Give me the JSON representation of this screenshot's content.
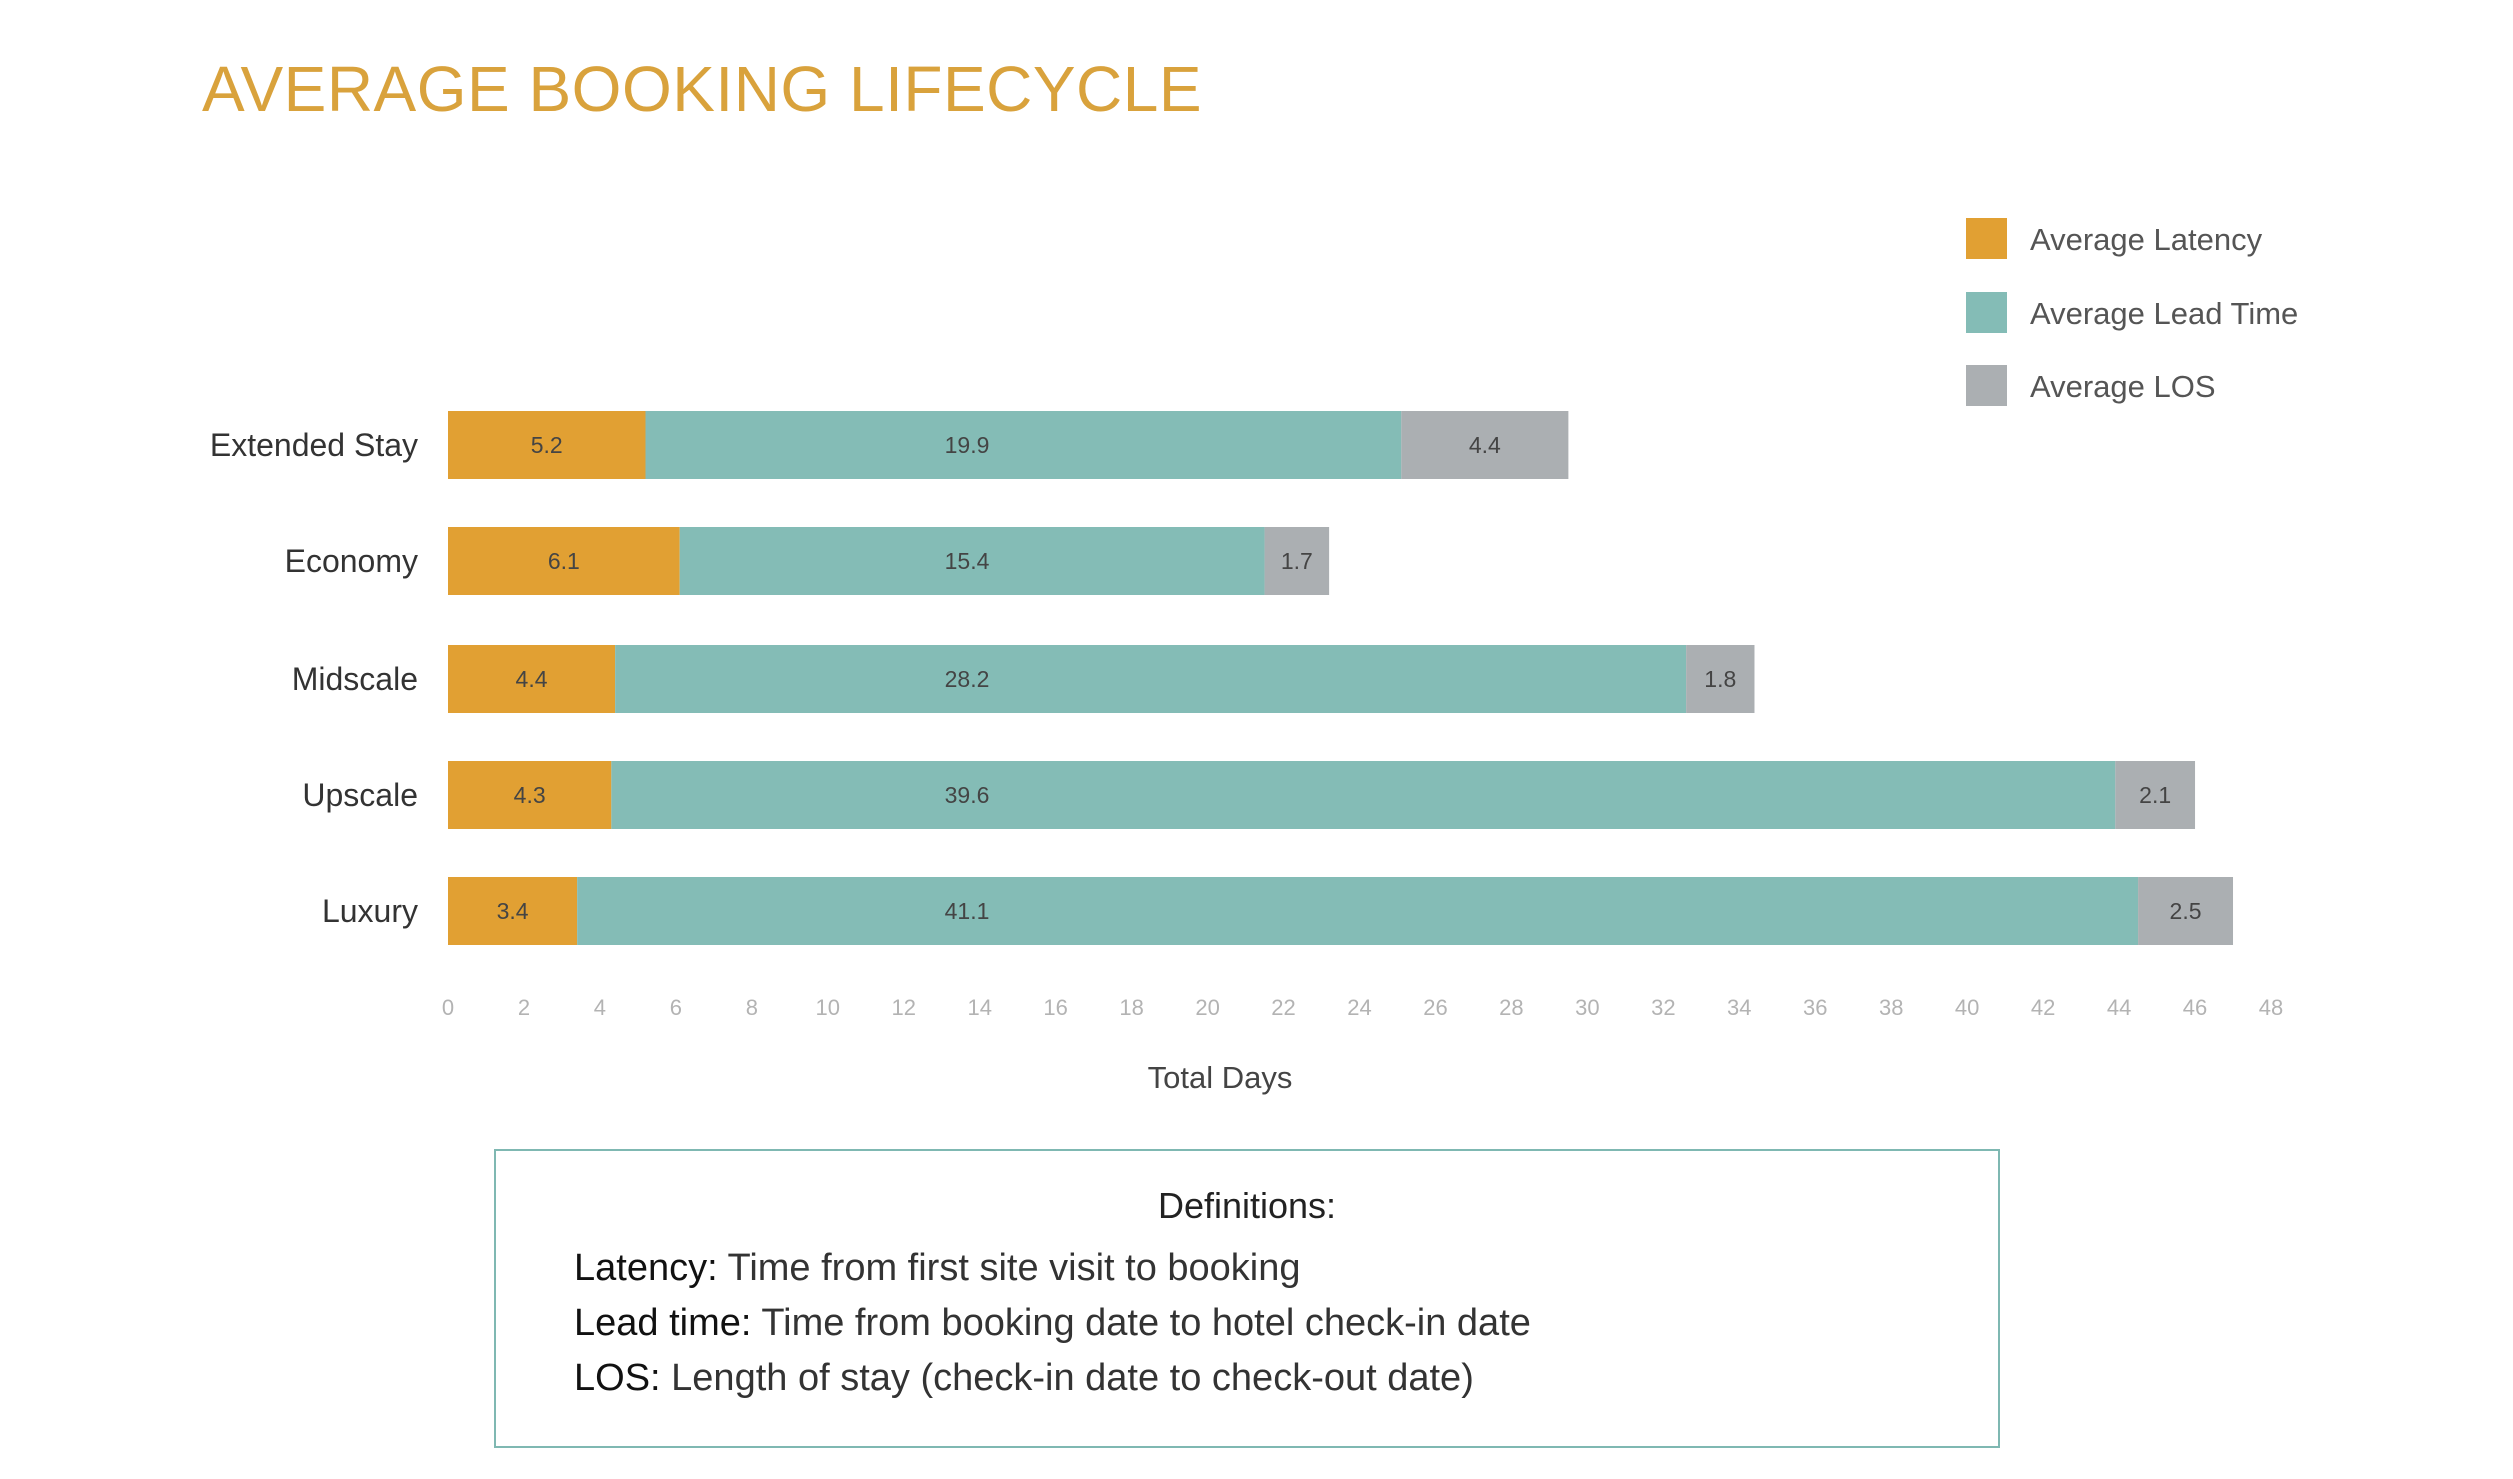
{
  "chart_data": {
    "type": "bar",
    "orientation": "horizontal",
    "stacked": true,
    "title": "AVERAGE BOOKING LIFECYCLE",
    "xlabel": "Total Days",
    "ylabel": "",
    "xlim": [
      0,
      48
    ],
    "xticks": [
      0,
      2,
      4,
      6,
      8,
      10,
      12,
      14,
      16,
      18,
      20,
      22,
      24,
      26,
      28,
      30,
      32,
      34,
      36,
      38,
      40,
      42,
      44,
      46,
      48
    ],
    "categories": [
      "Extended Stay",
      "Economy",
      "Midscale",
      "Upscale",
      "Luxury"
    ],
    "series": [
      {
        "name": "Average Latency",
        "color": "#E1A033",
        "values": [
          5.2,
          6.1,
          4.4,
          4.3,
          3.4
        ]
      },
      {
        "name": "Average Lead Time",
        "color": "#84BCB6",
        "values": [
          19.9,
          15.4,
          28.2,
          39.6,
          41.1
        ]
      },
      {
        "name": "Average LOS",
        "color": "#ABAFB2",
        "values": [
          4.4,
          1.7,
          1.8,
          2.1,
          2.5
        ]
      }
    ],
    "value_labels": [
      [
        "5.2",
        "6.1",
        "4.4",
        "4.3",
        "3.4"
      ],
      [
        "19.9",
        "15.4",
        "28.2",
        "39.6",
        "41.1"
      ],
      [
        "4.4",
        "1.7",
        "1.8",
        "2.1",
        "2.5"
      ]
    ],
    "legend_position": "top-right",
    "grid": false
  },
  "definitions": {
    "title": "Definitions:",
    "items": [
      {
        "term": "Latency:",
        "text": " Time from first site visit to booking"
      },
      {
        "term": "Lead time:",
        "text": " Time from booking date to hotel check-in date"
      },
      {
        "term": "LOS:",
        "text": " Length of stay (check-in date to check-out date)"
      }
    ]
  }
}
